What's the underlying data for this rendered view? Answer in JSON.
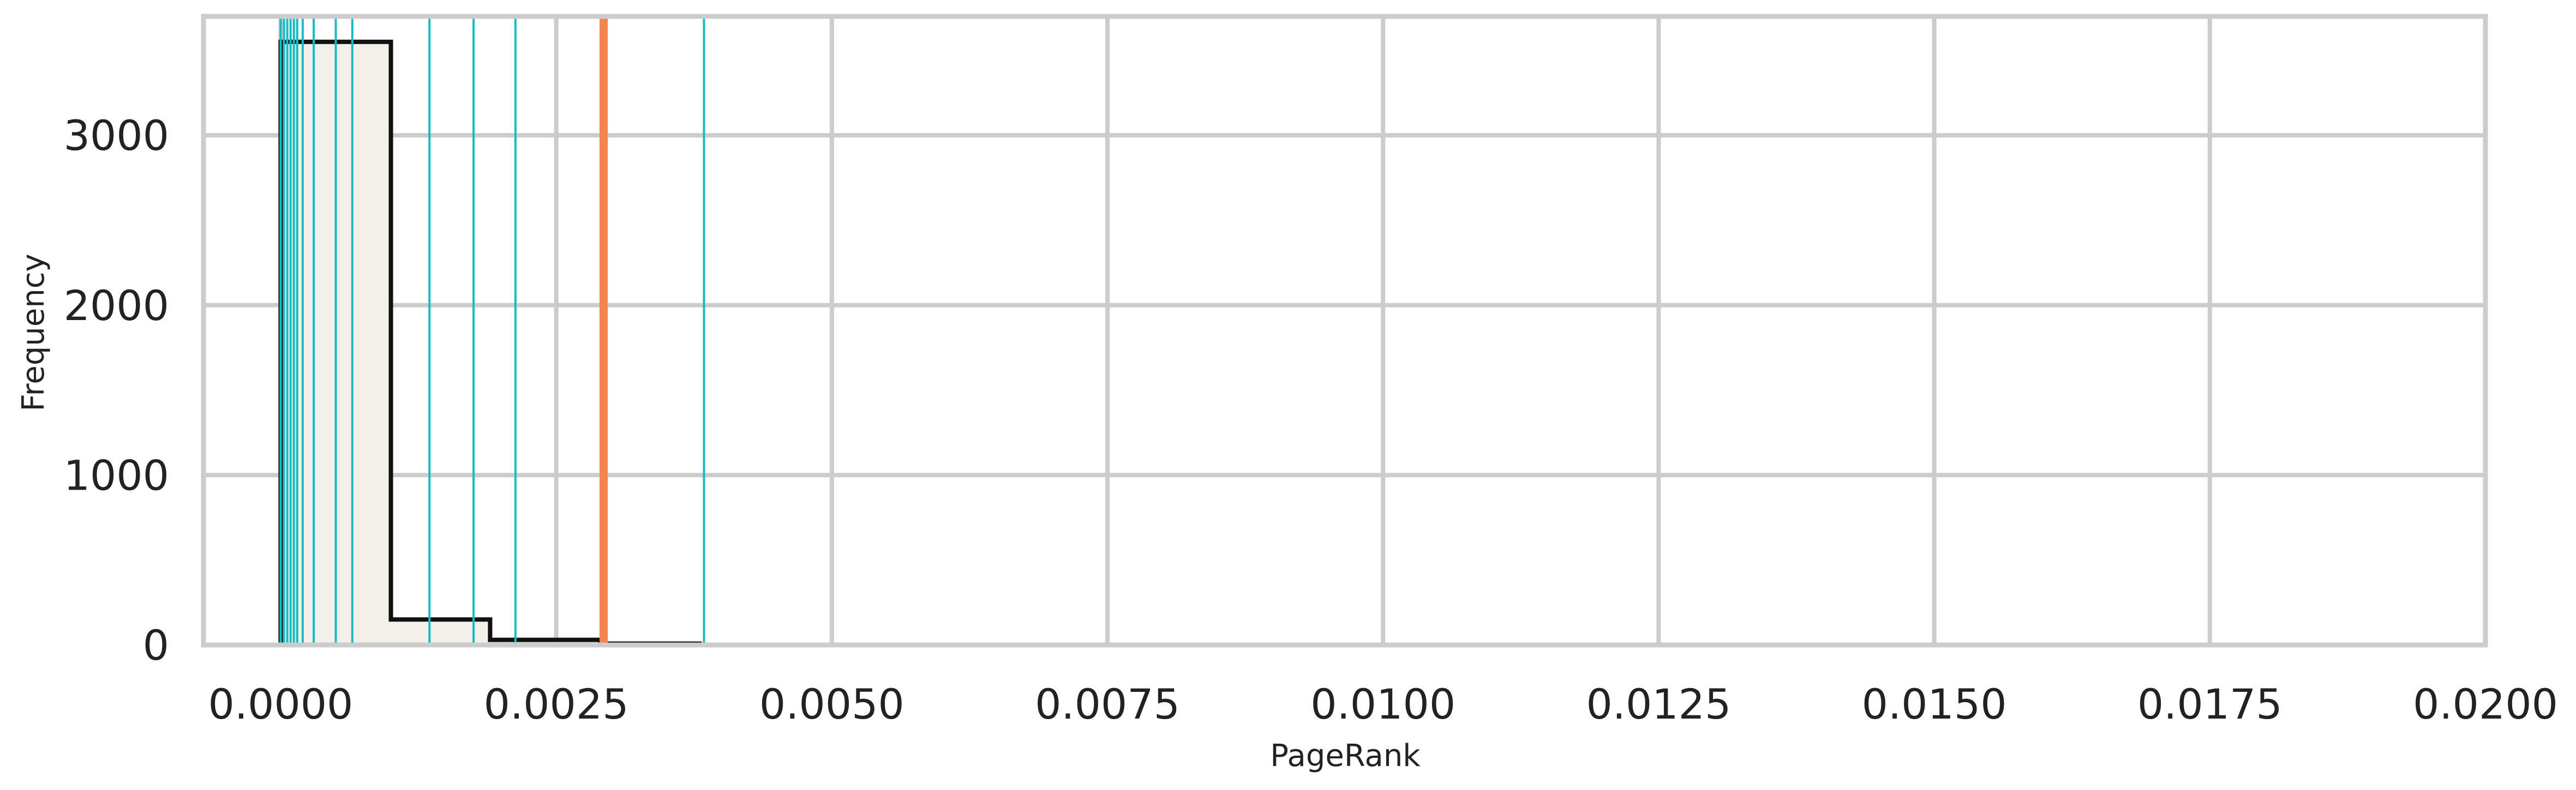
{
  "chart_data": {
    "type": "histogram",
    "title": "",
    "xlabel": "PageRank",
    "ylabel": "Frequency",
    "xlim": [
      -0.0007,
      0.02
    ],
    "ylim": [
      0,
      3700
    ],
    "x_ticks": [
      0.0,
      0.0025,
      0.005,
      0.0075,
      0.01,
      0.0125,
      0.015,
      0.0175,
      0.02
    ],
    "x_tick_labels": [
      "0.0000",
      "0.0025",
      "0.0050",
      "0.0075",
      "0.0100",
      "0.0125",
      "0.0150",
      "0.0175",
      "0.0200"
    ],
    "y_ticks": [
      0,
      1000,
      2000,
      3000
    ],
    "y_tick_labels": [
      "0",
      "1000",
      "2000",
      "3000"
    ],
    "grid": true,
    "bins": [
      {
        "x0": 0.0,
        "x1": 0.001,
        "count": 3550
      },
      {
        "x0": 0.001,
        "x1": 0.0019,
        "count": 150
      },
      {
        "x0": 0.0019,
        "x1": 0.0029,
        "count": 30
      },
      {
        "x0": 0.0029,
        "x1": 0.0038,
        "count": 8
      }
    ],
    "highlight_lines": [
      0.0,
      3e-05,
      6e-05,
      9e-05,
      0.00012,
      0.00015,
      0.0002,
      0.0003,
      0.0005,
      0.00065,
      0.00135,
      0.00175,
      0.00213,
      0.00384
    ],
    "reference_line": 0.00293,
    "colors": {
      "bar_fill": "#f2f0e9",
      "bar_edge": "#111111",
      "highlight_line": "#17bcc1",
      "reference_line": "#f4854e",
      "grid": "#cccccc"
    }
  }
}
